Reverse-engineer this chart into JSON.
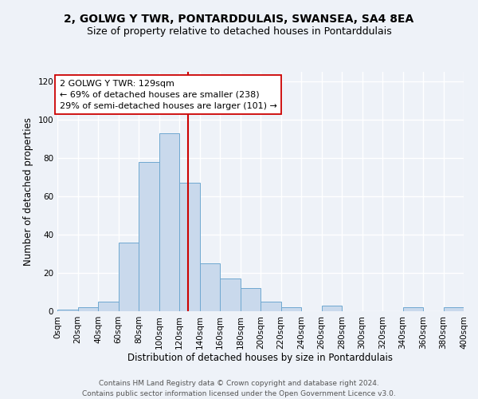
{
  "title": "2, GOLWG Y TWR, PONTARDDULAIS, SWANSEA, SA4 8EA",
  "subtitle": "Size of property relative to detached houses in Pontarddulais",
  "xlabel": "Distribution of detached houses by size in Pontarddulais",
  "ylabel": "Number of detached properties",
  "bin_edges": [
    0,
    20,
    40,
    60,
    80,
    100,
    120,
    140,
    160,
    180,
    200,
    220,
    240,
    260,
    280,
    300,
    320,
    340,
    360,
    380,
    400
  ],
  "bar_heights": [
    1,
    2,
    5,
    36,
    78,
    93,
    67,
    25,
    17,
    12,
    5,
    2,
    0,
    3,
    0,
    0,
    0,
    2,
    0,
    2
  ],
  "bar_color": "#c9d9ec",
  "bar_edgecolor": "#6fa8d0",
  "vline_x": 129,
  "vline_color": "#cc0000",
  "annotation_line1": "2 GOLWG Y TWR: 129sqm",
  "annotation_line2": "← 69% of detached houses are smaller (238)",
  "annotation_line3": "29% of semi-detached houses are larger (101) →",
  "annotation_box_edgecolor": "#cc0000",
  "annotation_box_facecolor": "#ffffff",
  "ylim": [
    0,
    125
  ],
  "xlim": [
    0,
    400
  ],
  "xtick_positions": [
    0,
    20,
    40,
    60,
    80,
    100,
    120,
    140,
    160,
    180,
    200,
    220,
    240,
    260,
    280,
    300,
    320,
    340,
    360,
    380,
    400
  ],
  "xtick_labels": [
    "0sqm",
    "20sqm",
    "40sqm",
    "60sqm",
    "80sqm",
    "100sqm",
    "120sqm",
    "140sqm",
    "160sqm",
    "180sqm",
    "200sqm",
    "220sqm",
    "240sqm",
    "260sqm",
    "280sqm",
    "300sqm",
    "320sqm",
    "340sqm",
    "360sqm",
    "380sqm",
    "400sqm"
  ],
  "ytick_positions": [
    0,
    20,
    40,
    60,
    80,
    100,
    120
  ],
  "footer_text": "Contains HM Land Registry data © Crown copyright and database right 2024.\nContains public sector information licensed under the Open Government Licence v3.0.",
  "background_color": "#eef2f8",
  "grid_color": "#ffffff",
  "title_fontsize": 10,
  "subtitle_fontsize": 9,
  "axis_label_fontsize": 8.5,
  "tick_fontsize": 7.5,
  "annotation_fontsize": 8,
  "footer_fontsize": 6.5
}
